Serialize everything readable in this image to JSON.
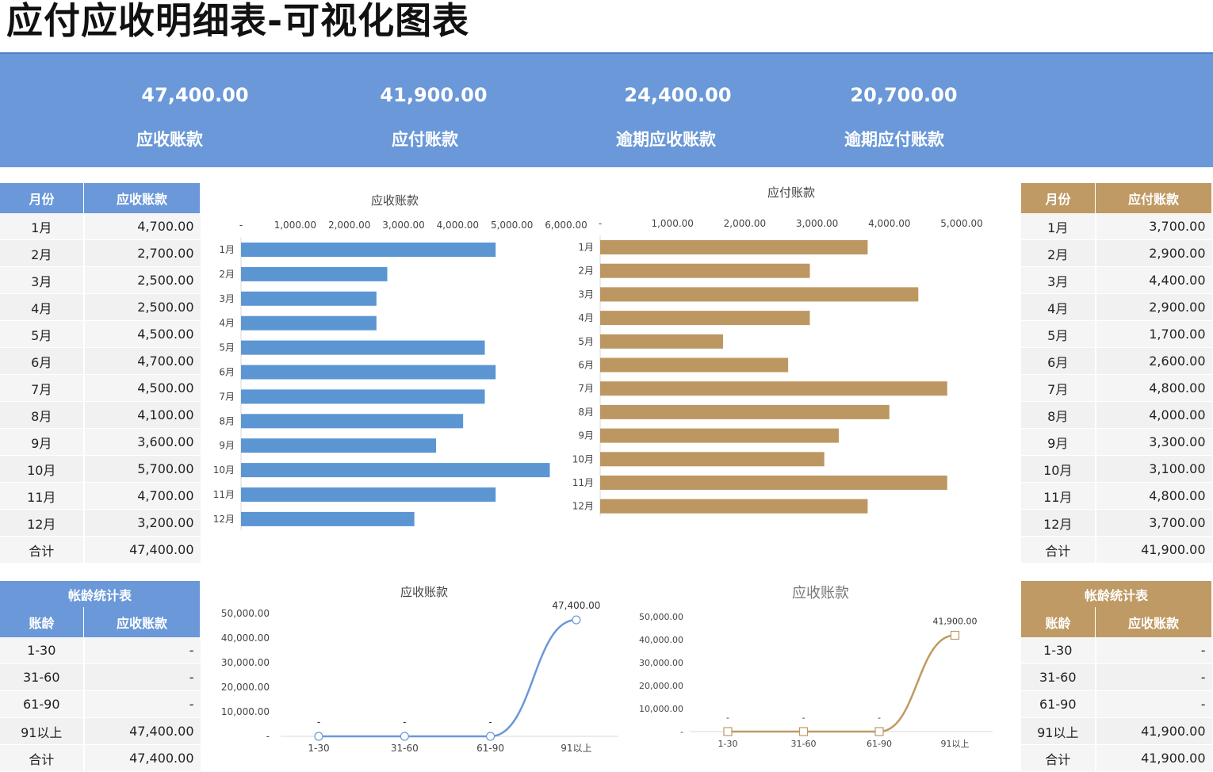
{
  "page": {
    "title": "应付应收明细表-可视化图表"
  },
  "kpis": [
    {
      "value": "47,400.00",
      "label": "应收账款"
    },
    {
      "value": "41,900.00",
      "label": "应付账款"
    },
    {
      "value": "24,400.00",
      "label": "逾期应收账款"
    },
    {
      "value": "20,700.00",
      "label": "逾期应付账款"
    }
  ],
  "receivable_table": {
    "headers": [
      "月份",
      "应收账款"
    ],
    "rows": [
      [
        "1月",
        "4,700.00"
      ],
      [
        "2月",
        "2,700.00"
      ],
      [
        "3月",
        "2,500.00"
      ],
      [
        "4月",
        "2,500.00"
      ],
      [
        "5月",
        "4,500.00"
      ],
      [
        "6月",
        "4,700.00"
      ],
      [
        "7月",
        "4,500.00"
      ],
      [
        "8月",
        "4,100.00"
      ],
      [
        "9月",
        "3,600.00"
      ],
      [
        "10月",
        "5,700.00"
      ],
      [
        "11月",
        "4,700.00"
      ],
      [
        "12月",
        "3,200.00"
      ],
      [
        "合计",
        "47,400.00"
      ]
    ]
  },
  "payable_table": {
    "headers": [
      "月份",
      "应付账款"
    ],
    "rows": [
      [
        "1月",
        "3,700.00"
      ],
      [
        "2月",
        "2,900.00"
      ],
      [
        "3月",
        "4,400.00"
      ],
      [
        "4月",
        "2,900.00"
      ],
      [
        "5月",
        "1,700.00"
      ],
      [
        "6月",
        "2,600.00"
      ],
      [
        "7月",
        "4,800.00"
      ],
      [
        "8月",
        "4,000.00"
      ],
      [
        "9月",
        "3,300.00"
      ],
      [
        "10月",
        "3,100.00"
      ],
      [
        "11月",
        "4,800.00"
      ],
      [
        "12月",
        "3,700.00"
      ],
      [
        "合计",
        "41,900.00"
      ]
    ]
  },
  "aging_receivable": {
    "caption": "帐龄统计表",
    "headers": [
      "账龄",
      "应收账款"
    ],
    "rows": [
      [
        "1-30",
        "-"
      ],
      [
        "31-60",
        "-"
      ],
      [
        "61-90",
        "-"
      ],
      [
        "91以上",
        "47,400.00"
      ],
      [
        "合计",
        "47,400.00"
      ]
    ]
  },
  "aging_payable": {
    "caption": "帐龄统计表",
    "headers": [
      "账龄",
      "应收账款"
    ],
    "rows": [
      [
        "1-30",
        "-"
      ],
      [
        "31-60",
        "-"
      ],
      [
        "61-90",
        "-"
      ],
      [
        "91以上",
        "41,900.00"
      ],
      [
        "合计",
        "41,900.00"
      ]
    ]
  },
  "colors": {
    "blue": "#6a98d8",
    "gold": "#bf9a64",
    "bar_blue": "#5b96d3",
    "bar_gold": "#bd9762"
  },
  "chart_data": [
    {
      "type": "bar",
      "orientation": "horizontal",
      "title": "应收账款",
      "categories": [
        "1月",
        "2月",
        "3月",
        "4月",
        "5月",
        "6月",
        "7月",
        "8月",
        "9月",
        "10月",
        "11月",
        "12月"
      ],
      "values": [
        4700,
        2700,
        2500,
        2500,
        4500,
        4700,
        4500,
        4100,
        3600,
        5700,
        4700,
        3200
      ],
      "xlim": [
        0,
        6000
      ],
      "ticks": [
        0,
        1000,
        2000,
        3000,
        4000,
        5000,
        6000
      ],
      "tick_labels": [
        "-",
        "1,000.00",
        "2,000.00",
        "3,000.00",
        "4,000.00",
        "5,000.00",
        "6,000.00"
      ],
      "axis_position": "top",
      "grid": false
    },
    {
      "type": "bar",
      "orientation": "horizontal",
      "title": "应付账款",
      "categories": [
        "1月",
        "2月",
        "3月",
        "4月",
        "5月",
        "6月",
        "7月",
        "8月",
        "9月",
        "10月",
        "11月",
        "12月"
      ],
      "values": [
        3700,
        2900,
        4400,
        2900,
        1700,
        2600,
        4800,
        4000,
        3300,
        3100,
        4800,
        3700
      ],
      "xlim": [
        0,
        5000
      ],
      "ticks": [
        0,
        1000,
        2000,
        3000,
        4000,
        5000
      ],
      "tick_labels": [
        "-",
        "1,000.00",
        "2,000.00",
        "3,000.00",
        "4,000.00",
        "5,000.00"
      ],
      "axis_position": "top",
      "grid": false
    },
    {
      "type": "line",
      "title": "应收账款",
      "categories": [
        "1-30",
        "31-60",
        "61-90",
        "91以上"
      ],
      "values": [
        0,
        0,
        0,
        47400
      ],
      "data_labels": [
        "-",
        "-",
        "-",
        "47,400.00"
      ],
      "ylim": [
        0,
        50000
      ],
      "ticks": [
        0,
        10000,
        20000,
        30000,
        40000,
        50000
      ],
      "tick_labels": [
        "-",
        "10,000.00",
        "20,000.00",
        "30,000.00",
        "40,000.00",
        "50,000.00"
      ],
      "marker": "circle",
      "smooth": true,
      "grid": false
    },
    {
      "type": "line",
      "title": "应收账款",
      "categories": [
        "1-30",
        "31-60",
        "61-90",
        "91以上"
      ],
      "values": [
        0,
        0,
        0,
        41900
      ],
      "data_labels": [
        "-",
        "-",
        "-",
        "41,900.00"
      ],
      "ylim": [
        0,
        50000
      ],
      "ticks": [
        0,
        10000,
        20000,
        30000,
        40000,
        50000
      ],
      "tick_labels": [
        "-",
        "10,000.00",
        "20,000.00",
        "30,000.00",
        "40,000.00",
        "50,000.00"
      ],
      "marker": "square",
      "smooth": true,
      "grid": false
    }
  ]
}
